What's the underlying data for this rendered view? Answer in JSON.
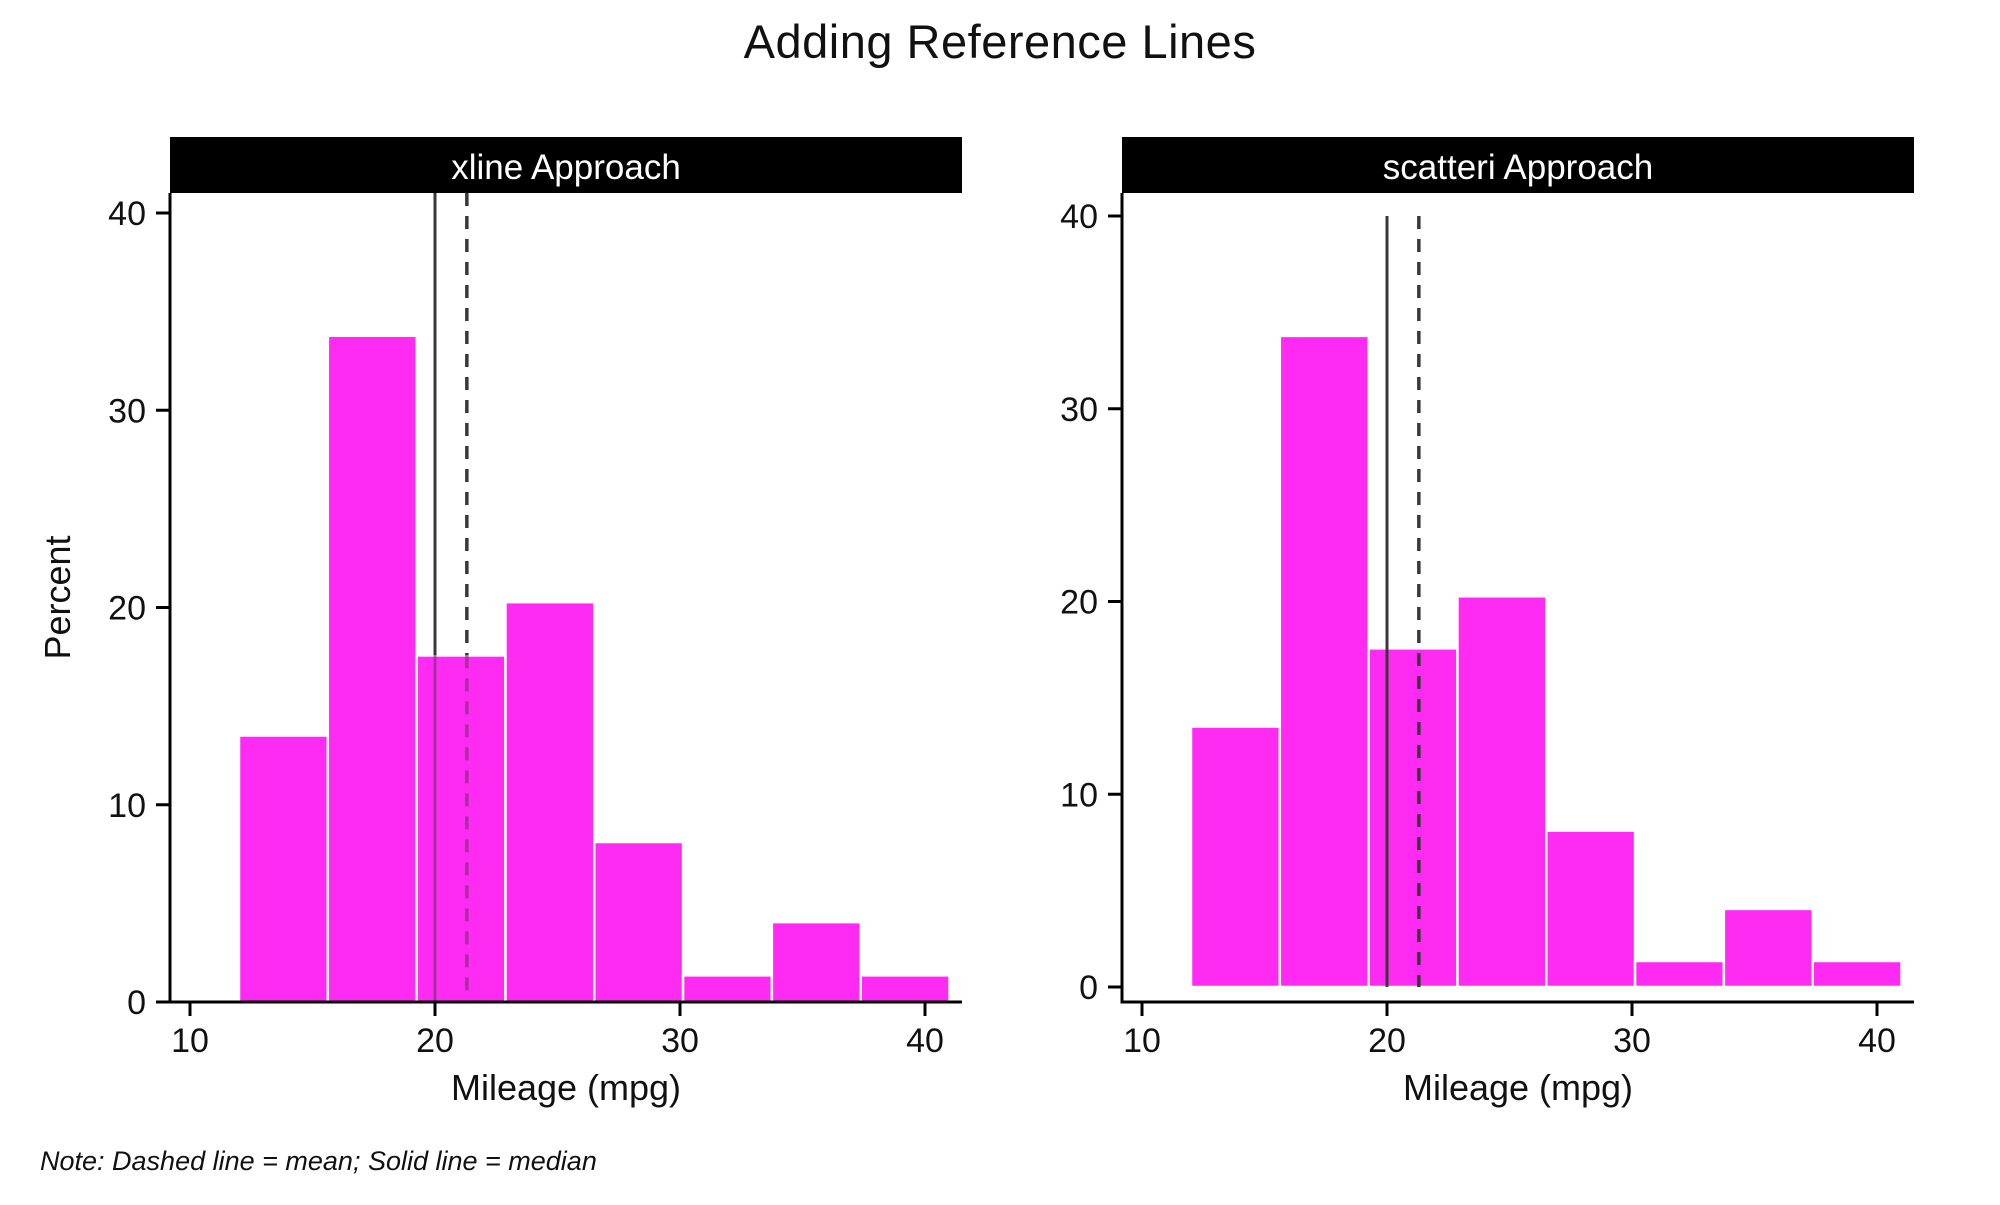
{
  "title": "Adding Reference Lines",
  "note": "Note: Dashed line = mean; Solid line = median",
  "colors": {
    "bar_fill": "#FF2BF2",
    "bar_separator": "#FFFFFF",
    "header_bg": "#000000",
    "header_text": "#FFFFFF",
    "axis": "#000000",
    "reference_line": "#383838"
  },
  "chart_data": [
    {
      "type": "bar",
      "title": "xline Approach",
      "xlabel": "Mileage (mpg)",
      "ylabel": "Percent",
      "ylim": [
        0,
        40
      ],
      "xlim": [
        10,
        41
      ],
      "y_ticks": [
        0,
        10,
        20,
        30,
        40
      ],
      "x_ticks": [
        10,
        20,
        30,
        40
      ],
      "grid": false,
      "bins": {
        "start": 12,
        "width": 3.625,
        "count": 8
      },
      "values": [
        13.51,
        33.78,
        17.57,
        20.27,
        8.11,
        1.35,
        4.05,
        1.35
      ],
      "ref_lines": [
        {
          "x": 20,
          "style": "solid",
          "meaning": "median"
        },
        {
          "x": 21.3,
          "style": "dashed",
          "meaning": "mean"
        }
      ],
      "ref_line_extent": "plot-region"
    },
    {
      "type": "bar",
      "title": "scatteri Approach",
      "xlabel": "Mileage (mpg)",
      "ylabel": "",
      "ylim": [
        0,
        40
      ],
      "xlim": [
        10,
        41
      ],
      "y_ticks": [
        0,
        10,
        20,
        30,
        40
      ],
      "x_ticks": [
        10,
        20,
        30,
        40
      ],
      "grid": false,
      "bins": {
        "start": 12,
        "width": 3.625,
        "count": 8
      },
      "values": [
        13.51,
        33.78,
        17.57,
        20.27,
        8.11,
        1.35,
        4.05,
        1.35
      ],
      "ref_lines": [
        {
          "x": 20,
          "style": "solid",
          "meaning": "median"
        },
        {
          "x": 21.3,
          "style": "dashed",
          "meaning": "mean"
        }
      ],
      "ref_line_extent": "data-range"
    }
  ]
}
